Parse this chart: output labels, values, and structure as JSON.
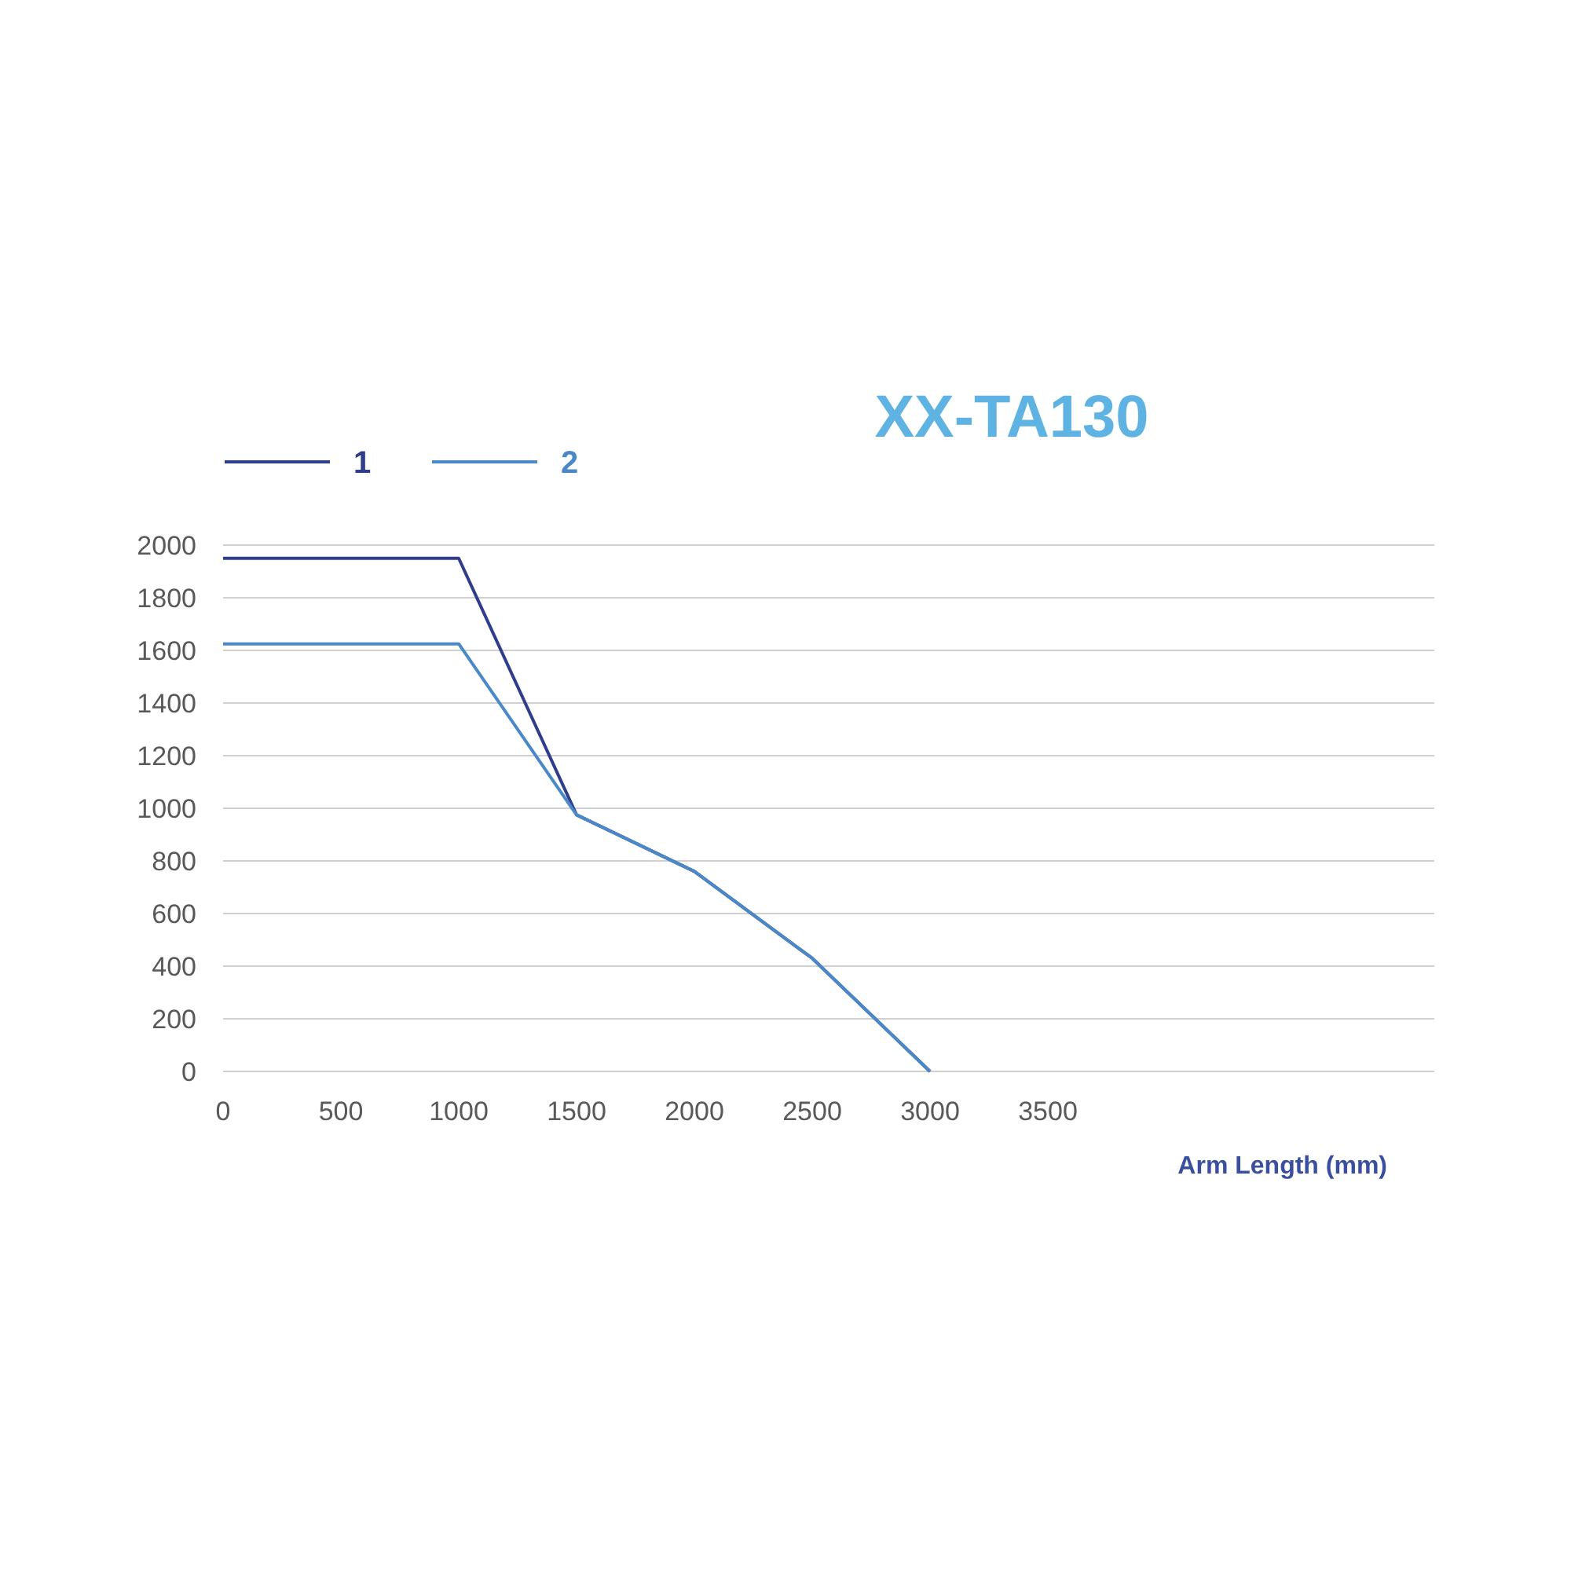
{
  "chart_data": {
    "type": "line",
    "title": "XX-TA130",
    "xlabel": "Arm Length (mm)",
    "x": [
      0,
      1000,
      1500,
      2000,
      2500,
      3000
    ],
    "series": [
      {
        "name": "1",
        "color": "#2e3d8c",
        "values": [
          1950,
          1950,
          975,
          760,
          430,
          0
        ]
      },
      {
        "name": "2",
        "color": "#4a88c8",
        "values": [
          1625,
          1625,
          975,
          760,
          430,
          0
        ]
      }
    ],
    "xlim": [
      0,
      5140
    ],
    "xticks": [
      0,
      500,
      1000,
      1500,
      2000,
      2500,
      3000,
      3500
    ],
    "ylim": [
      0,
      2000
    ],
    "yticks": [
      0,
      200,
      400,
      600,
      800,
      1000,
      1200,
      1400,
      1600,
      1800,
      2000
    ],
    "grid": "y",
    "legend": "top left",
    "line_style": "solid",
    "marker": "none"
  }
}
